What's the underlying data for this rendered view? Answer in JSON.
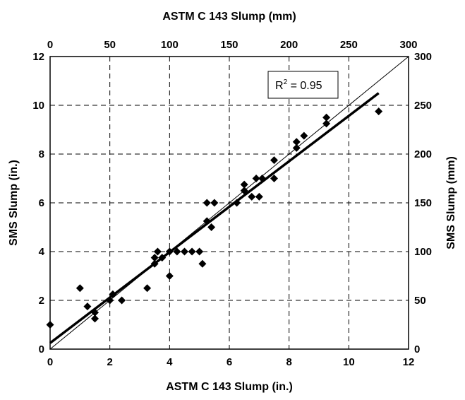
{
  "chart_data": {
    "type": "scatter",
    "xlabel_bottom": "ASTM C 143 Slump (in.)",
    "xlabel_top": "ASTM C 143 Slump (mm)",
    "ylabel_left": "SMS Slump (in.)",
    "ylabel_right": "SMS Slump (mm)",
    "xlim": [
      0,
      12
    ],
    "ylim": [
      0,
      12
    ],
    "x2lim": [
      0,
      300
    ],
    "y2lim": [
      0,
      300
    ],
    "x_ticks": [
      "0",
      "2",
      "4",
      "6",
      "8",
      "10",
      "12"
    ],
    "y_ticks": [
      "0",
      "2",
      "4",
      "6",
      "8",
      "10",
      "12"
    ],
    "x2_ticks": [
      "0",
      "50",
      "100",
      "150",
      "200",
      "250",
      "300"
    ],
    "y2_ticks": [
      "0",
      "50",
      "100",
      "150",
      "200",
      "250",
      "300"
    ],
    "grid": "dashed",
    "annotation": {
      "base": "R",
      "sup": "2",
      "rest": " = 0.95"
    },
    "line_of_equality": {
      "x": [
        0,
        12
      ],
      "y": [
        0,
        12
      ]
    },
    "regression_line": {
      "x": [
        0,
        11
      ],
      "y": [
        0.25,
        10.5
      ]
    },
    "points": [
      {
        "x": 0,
        "y": 1
      },
      {
        "x": 1.0,
        "y": 2.5
      },
      {
        "x": 1.25,
        "y": 1.75
      },
      {
        "x": 1.5,
        "y": 1.25
      },
      {
        "x": 1.5,
        "y": 1.5
      },
      {
        "x": 2.0,
        "y": 2.0
      },
      {
        "x": 2.1,
        "y": 2.25
      },
      {
        "x": 2.4,
        "y": 2.0
      },
      {
        "x": 3.25,
        "y": 2.5
      },
      {
        "x": 3.5,
        "y": 3.5
      },
      {
        "x": 3.5,
        "y": 3.75
      },
      {
        "x": 3.6,
        "y": 4.0
      },
      {
        "x": 3.75,
        "y": 3.75
      },
      {
        "x": 4.0,
        "y": 3.0
      },
      {
        "x": 4.0,
        "y": 4.0
      },
      {
        "x": 4.25,
        "y": 4.0
      },
      {
        "x": 4.5,
        "y": 4.0
      },
      {
        "x": 4.75,
        "y": 4.0
      },
      {
        "x": 5.0,
        "y": 4.0
      },
      {
        "x": 5.1,
        "y": 3.5
      },
      {
        "x": 5.25,
        "y": 5.25
      },
      {
        "x": 5.25,
        "y": 6.0
      },
      {
        "x": 5.4,
        "y": 5.0
      },
      {
        "x": 5.5,
        "y": 6.0
      },
      {
        "x": 6.25,
        "y": 6.0
      },
      {
        "x": 6.5,
        "y": 6.5
      },
      {
        "x": 6.5,
        "y": 6.75
      },
      {
        "x": 6.75,
        "y": 6.25
      },
      {
        "x": 6.9,
        "y": 7.0
      },
      {
        "x": 7.0,
        "y": 6.25
      },
      {
        "x": 7.1,
        "y": 7.0
      },
      {
        "x": 7.5,
        "y": 7.0
      },
      {
        "x": 7.5,
        "y": 7.75
      },
      {
        "x": 8.25,
        "y": 8.25
      },
      {
        "x": 8.25,
        "y": 8.5
      },
      {
        "x": 8.5,
        "y": 8.75
      },
      {
        "x": 9.25,
        "y": 9.25
      },
      {
        "x": 9.25,
        "y": 9.5
      },
      {
        "x": 11.0,
        "y": 9.75
      }
    ]
  }
}
